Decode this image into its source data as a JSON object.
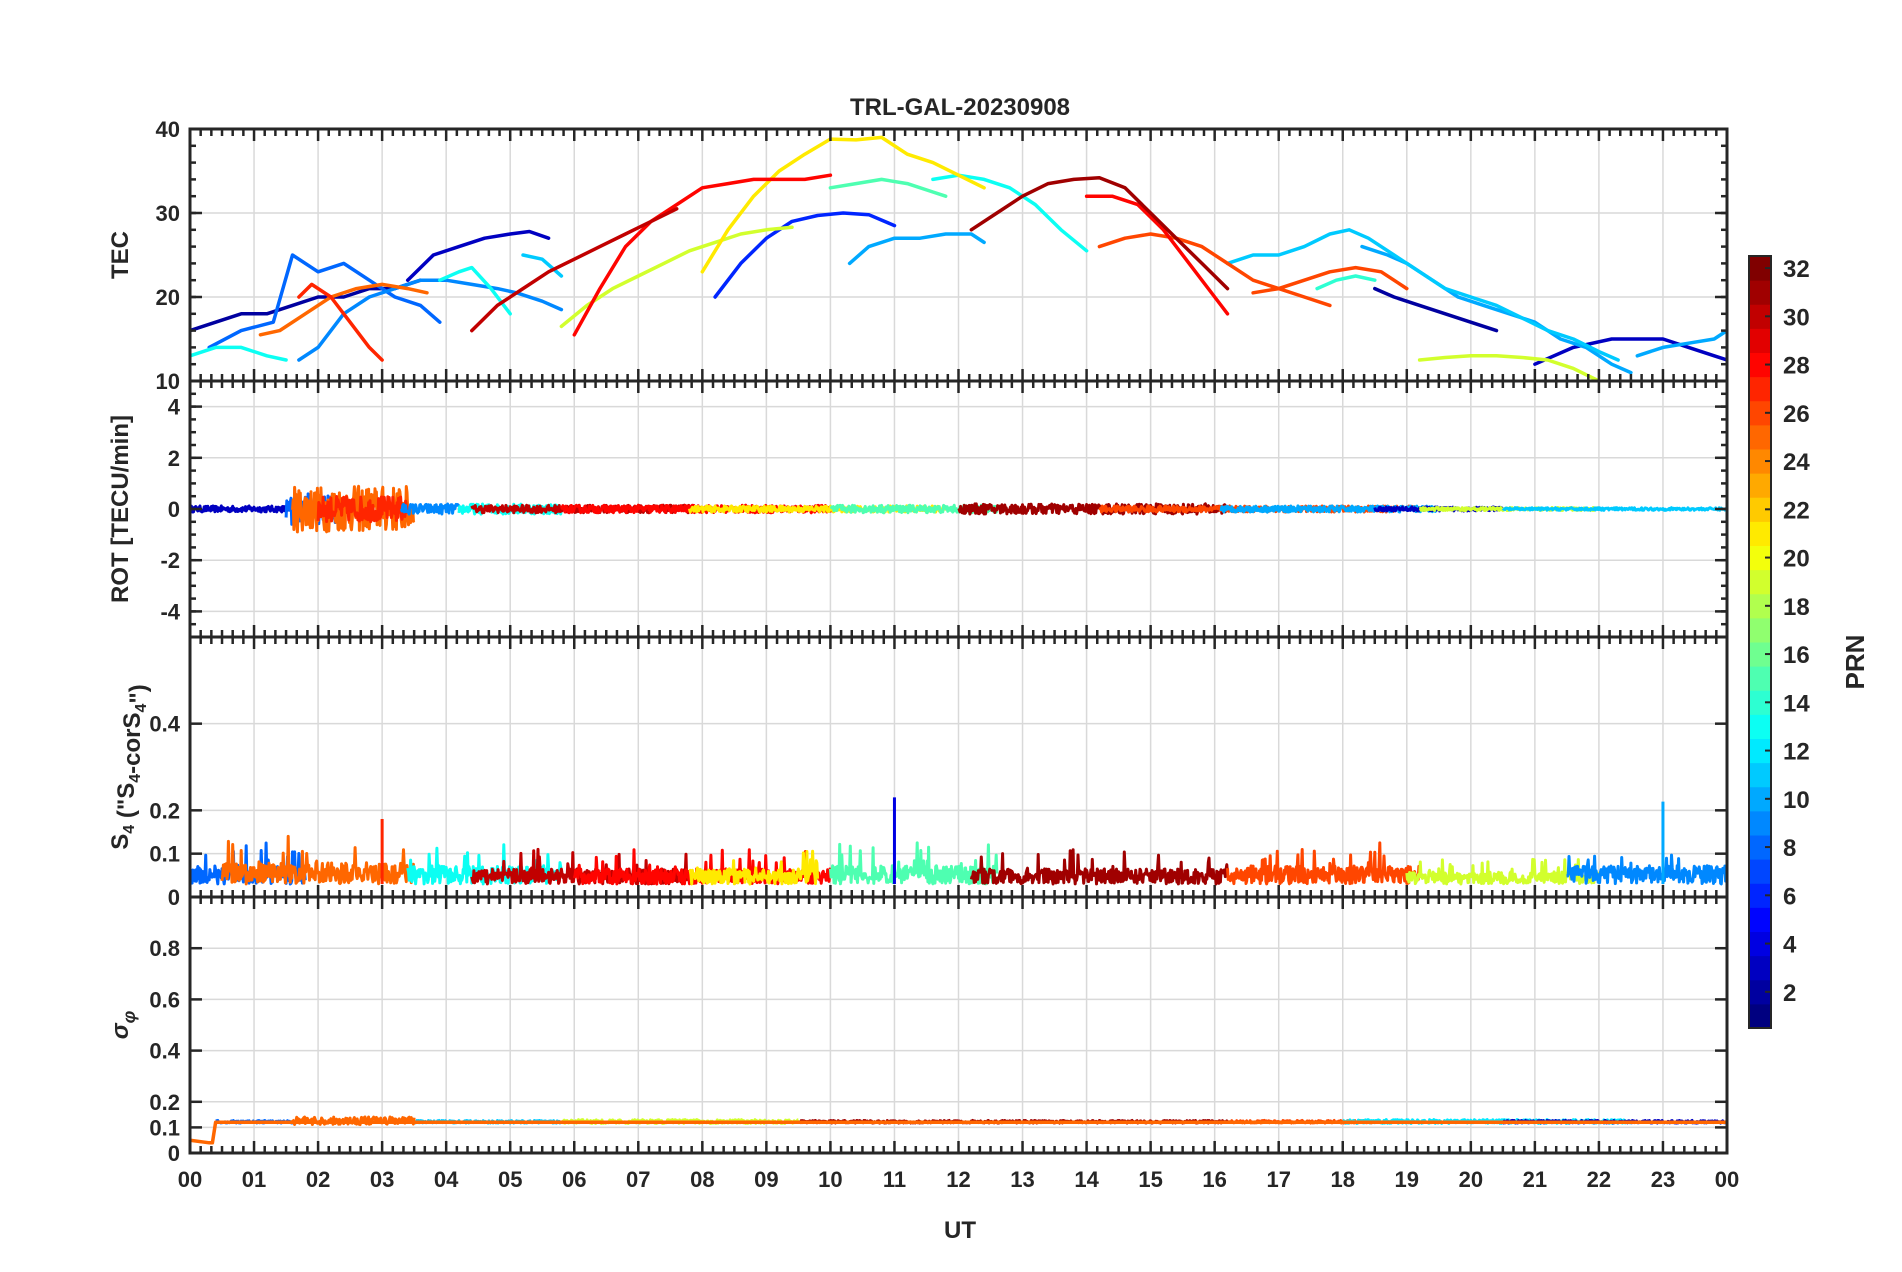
{
  "chart_data": {
    "type": "line",
    "title": "TRL-GAL-20230908",
    "xlabel": "UT",
    "x_ticks": [
      "00",
      "01",
      "02",
      "03",
      "04",
      "05",
      "06",
      "07",
      "08",
      "09",
      "10",
      "11",
      "12",
      "13",
      "14",
      "15",
      "16",
      "17",
      "18",
      "19",
      "20",
      "21",
      "22",
      "23",
      "00"
    ],
    "xlim": [
      0,
      24
    ],
    "colorbar": {
      "label": "PRN",
      "range": [
        1,
        32
      ],
      "ticks": [
        "2",
        "4",
        "6",
        "8",
        "10",
        "12",
        "14",
        "16",
        "18",
        "20",
        "22",
        "24",
        "26",
        "28",
        "30",
        "32"
      ]
    },
    "panels": [
      {
        "name": "tec",
        "ylabel": "TEC",
        "ylim": [
          10,
          40
        ],
        "yticks": [
          10,
          20,
          30,
          40
        ],
        "ytick_labels": [
          "10",
          "20",
          "30",
          "40"
        ],
        "series": [
          {
            "prn": 2,
            "x": [
              0,
              0.4,
              0.8,
              1.2,
              1.6,
              2.0,
              2.4,
              2.8,
              3.2,
              3.6
            ],
            "y": [
              16,
              17,
              18,
              18,
              19,
              20,
              20,
              21,
              21,
              22
            ]
          },
          {
            "prn": 3,
            "x": [
              3.4,
              3.8,
              4.2,
              4.6,
              5.0,
              5.3,
              5.6
            ],
            "y": [
              22,
              25,
              26,
              27,
              27.5,
              27.8,
              27
            ]
          },
          {
            "prn": 6,
            "x": [
              8.2,
              8.6,
              9.0,
              9.4,
              9.8,
              10.2,
              10.6,
              11.0
            ],
            "y": [
              20,
              24,
              27,
              29,
              29.7,
              30,
              29.8,
              28.5
            ]
          },
          {
            "prn": 2,
            "x": [
              18.5,
              18.8,
              19.2,
              19.6,
              20.0,
              20.4
            ],
            "y": [
              21,
              20,
              19,
              18,
              17,
              16
            ]
          },
          {
            "prn": 3,
            "x": [
              21.0,
              21.6,
              22.2,
              22.6,
              23.0,
              23.4,
              23.8,
              24.0
            ],
            "y": [
              12,
              14,
              15,
              15,
              15,
              14,
              13,
              12.5
            ]
          },
          {
            "prn": 8,
            "x": [
              0.3,
              0.8,
              1.3,
              1.6,
              2.0,
              2.4,
              2.8,
              3.2,
              3.6,
              3.9
            ],
            "y": [
              14,
              16,
              17,
              25,
              23,
              24,
              22,
              20,
              19,
              17
            ]
          },
          {
            "prn": 9,
            "x": [
              1.7,
              2.0,
              2.4,
              2.8,
              3.2,
              3.6,
              4.0,
              4.4,
              4.8,
              5.1,
              5.5,
              5.8
            ],
            "y": [
              12.5,
              14,
              18,
              20,
              21,
              22,
              22,
              21.5,
              21,
              20.5,
              19.5,
              18.5
            ]
          },
          {
            "prn": 10,
            "x": [
              10.3,
              10.6,
              11.0,
              11.4,
              11.8,
              12.2,
              12.4
            ],
            "y": [
              24,
              26,
              27,
              27,
              27.5,
              27.5,
              26.5
            ]
          },
          {
            "prn": 11,
            "x": [
              5.2,
              5.5,
              5.8
            ],
            "y": [
              25,
              24.5,
              22.5
            ]
          },
          {
            "prn": 10,
            "x": [
              18.3,
              18.7,
              19.0,
              19.4,
              19.8,
              20.2,
              20.6,
              21.0,
              21.4,
              21.8,
              22.2,
              22.5
            ],
            "y": [
              26,
              25,
              24,
              22,
              20,
              19,
              18,
              17,
              15,
              14,
              12,
              11
            ]
          },
          {
            "prn": 11,
            "x": [
              16.2,
              16.6,
              17.0,
              17.4,
              17.8,
              18.1,
              18.4,
              18.8,
              19.2,
              19.6,
              20.0,
              20.4,
              20.8,
              21.2,
              21.6,
              22.0,
              22.3
            ],
            "y": [
              24,
              25,
              25,
              26,
              27.5,
              28,
              27,
              25,
              23,
              21,
              20,
              19,
              17.5,
              16,
              15,
              13.5,
              12.5
            ]
          },
          {
            "prn": 10,
            "x": [
              22.6,
              23.0,
              23.4,
              23.8,
              24.0
            ],
            "y": [
              13,
              14,
              14.5,
              15,
              16
            ]
          },
          {
            "prn": 13,
            "x": [
              0,
              0.4,
              0.8,
              1.2,
              1.5
            ],
            "y": [
              13,
              14,
              14,
              13,
              12.5
            ]
          },
          {
            "prn": 13,
            "x": [
              3.9,
              4.2,
              4.4,
              4.7,
              5.0
            ],
            "y": [
              22,
              23,
              23.5,
              21,
              18
            ]
          },
          {
            "prn": 13,
            "x": [
              11.6,
              12.0,
              12.4,
              12.8,
              13.2,
              13.6,
              14.0
            ],
            "y": [
              34,
              34.5,
              34,
              33,
              31,
              28,
              25.5
            ]
          },
          {
            "prn": 15,
            "x": [
              10.0,
              10.4,
              10.8,
              11.2,
              11.6,
              11.8
            ],
            "y": [
              33,
              33.5,
              34,
              33.5,
              32.5,
              32
            ]
          },
          {
            "prn": 14,
            "x": [
              17.6,
              17.9,
              18.2,
              18.5
            ],
            "y": [
              21,
              22,
              22.5,
              22
            ]
          },
          {
            "prn": 19,
            "x": [
              5.8,
              6.2,
              6.6,
              7.0,
              7.4,
              7.8,
              8.2,
              8.6,
              9.0,
              9.4
            ],
            "y": [
              16.5,
              19,
              21,
              22.5,
              24,
              25.5,
              26.5,
              27.5,
              28,
              28.3
            ]
          },
          {
            "prn": 21,
            "x": [
              8.0,
              8.4,
              8.8,
              9.2,
              9.6,
              10.0,
              10.4,
              10.8,
              11.2,
              11.6,
              12.0,
              12.4
            ],
            "y": [
              23,
              28,
              32,
              35,
              37,
              38.8,
              38.7,
              39,
              37,
              36,
              34.5,
              33
            ]
          },
          {
            "prn": 19,
            "x": [
              19.2,
              19.6,
              20.0,
              20.4,
              20.8,
              21.2,
              21.6,
              22.0
            ],
            "y": [
              12.5,
              12.8,
              13,
              13,
              12.8,
              12.5,
              11.5,
              10
            ]
          },
          {
            "prn": 25,
            "x": [
              1.1,
              1.4,
              1.8,
              2.2,
              2.6,
              3.0,
              3.4,
              3.7
            ],
            "y": [
              15.5,
              16,
              18,
              20,
              21,
              21.5,
              21,
              20.5
            ]
          },
          {
            "prn": 27,
            "x": [
              1.7,
              1.9,
              2.2,
              2.5,
              2.8,
              3.0
            ],
            "y": [
              20,
              21.5,
              20,
              17,
              14,
              12.5
            ]
          },
          {
            "prn": 26,
            "x": [
              14.2,
              14.6,
              15.0,
              15.4,
              15.8,
              16.2,
              16.6,
              17.0,
              17.4,
              17.8
            ],
            "y": [
              26,
              27,
              27.5,
              27,
              26,
              24,
              22,
              21,
              20,
              19
            ]
          },
          {
            "prn": 26,
            "x": [
              16.6,
              17.0,
              17.4,
              17.8,
              18.2,
              18.6,
              19.0
            ],
            "y": [
              20.5,
              21,
              22,
              23,
              23.5,
              23,
              21
            ]
          },
          {
            "prn": 28,
            "x": [
              6.0,
              6.4,
              6.8,
              7.2,
              7.6,
              8.0,
              8.4,
              8.8,
              9.2,
              9.6,
              10.0
            ],
            "y": [
              15.5,
              21,
              26,
              29,
              31,
              33,
              33.5,
              34,
              34,
              34,
              34.5
            ]
          },
          {
            "prn": 28,
            "x": [
              14.0,
              14.4,
              14.8,
              15.2,
              15.6,
              16.0,
              16.2
            ],
            "y": [
              32,
              32,
              31,
              28,
              24,
              20,
              18
            ]
          },
          {
            "prn": 31,
            "x": [
              12.2,
              12.6,
              13.0,
              13.4,
              13.8,
              14.2,
              14.6,
              15.0,
              15.4,
              15.8,
              16.2
            ],
            "y": [
              28,
              30,
              32,
              33.5,
              34,
              34.2,
              33,
              30,
              27,
              24,
              21
            ]
          },
          {
            "prn": 30,
            "x": [
              4.4,
              4.8,
              5.2,
              5.6,
              6.0,
              6.4,
              6.8,
              7.2,
              7.6
            ],
            "y": [
              16,
              19,
              21,
              23,
              24.5,
              26,
              27.5,
              29,
              30.5
            ]
          }
        ]
      },
      {
        "name": "rot",
        "ylabel": "ROT [TECU/min]",
        "ylim": [
          -5,
          5
        ],
        "yticks": [
          -4,
          -2,
          0,
          2,
          4
        ],
        "ytick_labels": [
          "-4",
          "-2",
          "0",
          "2",
          "4"
        ],
        "noise": [
          {
            "prn": 3,
            "start": 0,
            "end": 1.6,
            "amp": 0.12
          },
          {
            "prn": 8,
            "start": 1.5,
            "end": 2.3,
            "amp": 0.6
          },
          {
            "prn": 25,
            "start": 1.6,
            "end": 3.5,
            "amp": 0.9
          },
          {
            "prn": 27,
            "start": 2.0,
            "end": 3.4,
            "amp": 0.5
          },
          {
            "prn": 9,
            "start": 3.3,
            "end": 4.2,
            "amp": 0.2
          },
          {
            "prn": 13,
            "start": 4.2,
            "end": 5.8,
            "amp": 0.2
          },
          {
            "prn": 30,
            "start": 4.4,
            "end": 7.8,
            "amp": 0.15
          },
          {
            "prn": 28,
            "start": 5.8,
            "end": 10.0,
            "amp": 0.15
          },
          {
            "prn": 21,
            "start": 7.8,
            "end": 11.8,
            "amp": 0.12
          },
          {
            "prn": 15,
            "start": 10.0,
            "end": 12.6,
            "amp": 0.15
          },
          {
            "prn": 31,
            "start": 12.0,
            "end": 16.2,
            "amp": 0.2
          },
          {
            "prn": 26,
            "start": 14.2,
            "end": 19.2,
            "amp": 0.12
          },
          {
            "prn": 10,
            "start": 16.1,
            "end": 19.5,
            "amp": 0.12
          },
          {
            "prn": 3,
            "start": 18.5,
            "end": 20.5,
            "amp": 0.08
          },
          {
            "prn": 19,
            "start": 19.2,
            "end": 22.0,
            "amp": 0.06
          },
          {
            "prn": 11,
            "start": 20.5,
            "end": 24.0,
            "amp": 0.05
          }
        ]
      },
      {
        "name": "s4",
        "ylabel": "S4 (\"S4-corS4\")",
        "ylim": [
          0,
          0.6
        ],
        "yticks": [
          0,
          0.1,
          0.2,
          0.4
        ],
        "ytick_labels": [
          "0",
          "0.1",
          "0.2",
          "0.4"
        ],
        "noise": [
          {
            "prn": 8,
            "start": 0,
            "end": 1.8,
            "amp": 0.06
          },
          {
            "prn": 25,
            "start": 0.5,
            "end": 3.5,
            "amp": 0.07
          },
          {
            "prn": 13,
            "start": 3.4,
            "end": 5.8,
            "amp": 0.06
          },
          {
            "prn": 30,
            "start": 4.4,
            "end": 7.8,
            "amp": 0.05
          },
          {
            "prn": 28,
            "start": 6.0,
            "end": 10.0,
            "amp": 0.05
          },
          {
            "prn": 21,
            "start": 7.8,
            "end": 9.8,
            "amp": 0.05
          },
          {
            "prn": 15,
            "start": 10.0,
            "end": 12.6,
            "amp": 0.06
          },
          {
            "prn": 31,
            "start": 12.2,
            "end": 16.2,
            "amp": 0.05
          },
          {
            "prn": 26,
            "start": 16.2,
            "end": 19.2,
            "amp": 0.06
          },
          {
            "prn": 19,
            "start": 19.0,
            "end": 22.0,
            "amp": 0.04
          },
          {
            "prn": 9,
            "start": 21.5,
            "end": 24.0,
            "amp": 0.06
          }
        ],
        "spikes": [
          {
            "prn": 4,
            "x": 11.0,
            "y": 0.23
          },
          {
            "prn": 10,
            "x": 23.0,
            "y": 0.22
          },
          {
            "prn": 27,
            "x": 3.0,
            "y": 0.18
          }
        ]
      },
      {
        "name": "sigma",
        "ylabel": "σφ",
        "ylim": [
          0,
          1
        ],
        "yticks": [
          0,
          0.1,
          0.2,
          0.4,
          0.6,
          0.8
        ],
        "ytick_labels": [
          "0",
          "0.1",
          "0.2",
          "0.4",
          "0.6",
          "0.8"
        ],
        "series": [
          {
            "prn": 25,
            "x": [
              0,
              0.3,
              0.35,
              0.4,
              24
            ],
            "y": [
              0.05,
              0.04,
              0.04,
              0.12,
              0.12
            ]
          }
        ],
        "noise": [
          {
            "prn": 8,
            "start": 0.4,
            "end": 1.7,
            "amp": 0.01
          },
          {
            "prn": 25,
            "start": 1.6,
            "end": 3.5,
            "amp": 0.03
          },
          {
            "prn": 11,
            "start": 3.5,
            "end": 5.8,
            "amp": 0.01
          },
          {
            "prn": 19,
            "start": 5.8,
            "end": 9.5,
            "amp": 0.015
          },
          {
            "prn": 31,
            "start": 9.5,
            "end": 16.2,
            "amp": 0.01
          },
          {
            "prn": 26,
            "start": 16.2,
            "end": 18.5,
            "amp": 0.01
          },
          {
            "prn": 12,
            "start": 18.0,
            "end": 22.5,
            "amp": 0.015
          },
          {
            "prn": 3,
            "start": 20.5,
            "end": 24.0,
            "amp": 0.01
          }
        ]
      }
    ]
  }
}
